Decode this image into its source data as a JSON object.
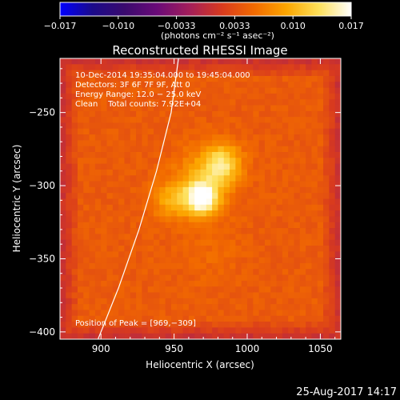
{
  "chart_data": {
    "type": "heatmap",
    "title": "Reconstructed RHESSI Image",
    "xlabel": "Heliocentric X (arcsec)",
    "ylabel": "Heliocentric Y (arcsec)",
    "xlim": [
      872,
      1064
    ],
    "ylim": [
      -405,
      -213
    ],
    "x_ticks": [
      900,
      950,
      1000,
      1050
    ],
    "y_ticks": [
      -250,
      -300,
      -350,
      -400
    ],
    "colorbar": {
      "range": [
        -0.017,
        0.017
      ],
      "ticks": [
        "−0.017",
        "−0.010",
        "−0.0033",
        "0.0033",
        "0.010",
        "0.017"
      ],
      "unit_label": "(photons cm⁻² s⁻¹ asec⁻²)",
      "colormap": [
        "#0000ff",
        "#1b0a8a",
        "#3a0a6e",
        "#6a0a78",
        "#a31e5a",
        "#d83a1e",
        "#f26a00",
        "#fca600",
        "#fde05a",
        "#ffffff"
      ]
    },
    "annotations": [
      "10-Dec-2014 19:35:04.000 to 19:45:04.000",
      "Detectors: 3F 6F 7F 9F, Att 0",
      "Energy Range: 12.0 − 25.0 keV",
      "Clean    Total counts: 7.92E+04"
    ],
    "peak_label": "Position of Peak = [969,−309]",
    "peak": {
      "x": 969,
      "y": -309
    },
    "sources": [
      {
        "x": 969,
        "y": -309,
        "peak": 0.017,
        "sigma": 8
      },
      {
        "x": 983,
        "y": -285,
        "peak": 0.0125,
        "sigma": 9
      },
      {
        "x": 948,
        "y": -310,
        "peak": 0.0095,
        "sigma": 9
      },
      {
        "x": 970,
        "y": -295,
        "peak": 0.009,
        "sigma": 14
      },
      {
        "x": 975,
        "y": -345,
        "peak": 0.0055,
        "sigma": 15
      }
    ],
    "background_level": 0.0045,
    "limb": [
      [
        898,
        -405
      ],
      [
        912,
        -370
      ],
      [
        926,
        -330
      ],
      [
        938,
        -290
      ],
      [
        948,
        -250
      ],
      [
        953,
        -213
      ]
    ],
    "timestamp": "25-Aug-2017 14:17"
  }
}
